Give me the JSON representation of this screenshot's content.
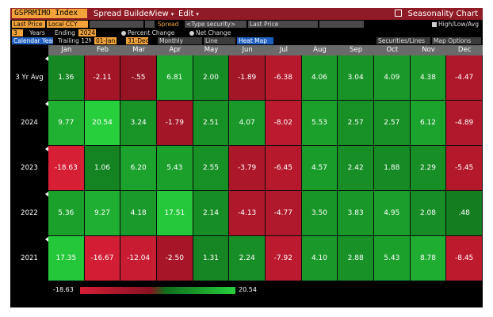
{
  "title_bar": {
    "ticker": "GSPRMIMO Index",
    "menus": [
      "Spread Builder",
      "View",
      "Edit"
    ],
    "right_label": "Seasonality Chart"
  },
  "toolbar": {
    "price_field": "Last Price",
    "currency": "Local CCY",
    "spread_label": "Spread",
    "security_placeholder": "<Type security>",
    "price_field_2": "Last Price",
    "high_low_avg": "High/Low/Avg",
    "years_value": "3",
    "years_label": "Years",
    "ending_label": "Ending",
    "ending_value": "2024",
    "percent_change": "Percent Change",
    "net_change": "Net Change",
    "calendar_year": "Calendar Year",
    "trailing": "Trailing 12M",
    "date_start": "01-Jan",
    "date_end": "31-Dec",
    "periodicity": "Monthly",
    "line_tab": "Line",
    "heatmap_tab": "Heat Map",
    "securities_lines": "Securities/Lines",
    "map_options": "Map Options"
  },
  "heatmap": {
    "columns": [
      "Jan",
      "Feb",
      "Mar",
      "Apr",
      "May",
      "Jun",
      "Jul",
      "Aug",
      "Sep",
      "Oct",
      "Nov",
      "Dec"
    ],
    "rows": [
      {
        "label": "3 Yr Avg",
        "values": [
          "1.36",
          "-2.11",
          "-.55",
          "6.81",
          "2.00",
          "-1.89",
          "-6.38",
          "4.06",
          "3.04",
          "4.09",
          "4.38",
          "-4.47"
        ]
      },
      {
        "label": "2024",
        "values": [
          "9.77",
          "20.54",
          "3.24",
          "-1.79",
          "2.51",
          "4.07",
          "-8.02",
          "5.53",
          "2.57",
          "2.57",
          "6.12",
          "-4.89"
        ]
      },
      {
        "label": "2023",
        "values": [
          "-18.63",
          "1.06",
          "6.20",
          "5.43",
          "2.55",
          "-3.79",
          "-6.45",
          "4.57",
          "2.42",
          "1.88",
          "2.29",
          "-5.45"
        ]
      },
      {
        "label": "2022",
        "values": [
          "5.36",
          "9.27",
          "4.18",
          "17.51",
          "2.14",
          "-4.13",
          "-4.77",
          "3.50",
          "3.83",
          "4.95",
          "2.08",
          ".48"
        ]
      },
      {
        "label": "2021",
        "values": [
          "17.35",
          "-16.67",
          "-12.04",
          "-2.50",
          "1.31",
          "2.24",
          "-7.92",
          "4.10",
          "2.88",
          "5.43",
          "8.78",
          "-8.45"
        ]
      }
    ]
  },
  "legend": {
    "min_label": "-18.63",
    "max_label": "20.54",
    "min": -18.63,
    "max": 20.54
  },
  "colors": {
    "title_bar": "#8e1b25",
    "amber": "#f2a33a",
    "header_grey": "#6a6a6a",
    "strong_red": "#d61e35",
    "dark_red": "#8a1220",
    "dark_green": "#0f6e1a",
    "bright_green": "#27cf3d"
  }
}
